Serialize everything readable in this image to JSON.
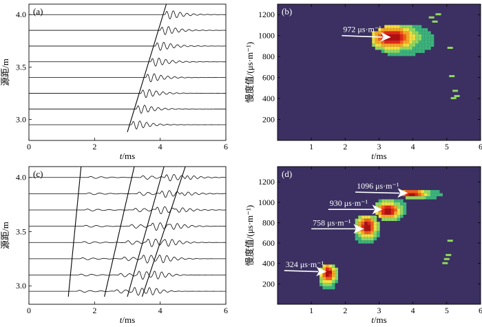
{
  "chart_data": [
    {
      "id": "a",
      "type": "line",
      "panel_label": "(a)",
      "xlabel": "t/ms",
      "ylabel": "源距/m",
      "xlim": [
        0,
        6
      ],
      "ylim": [
        2.8,
        4.1
      ],
      "x_ticks": [
        "0",
        "2",
        "4",
        "6"
      ],
      "y_ticks": [
        "3.0",
        "3.5",
        "4.0"
      ],
      "source_offsets": [
        2.95,
        3.1,
        3.25,
        3.4,
        3.55,
        3.7,
        3.85,
        4.0
      ],
      "moveout_line": {
        "t_start": 3.0,
        "offset_start": 2.88,
        "slowness_us_per_m": 972
      },
      "arrivals": [
        {
          "t0": 3.12,
          "slowness_us_per_m": 972,
          "freq_khz": 4.8,
          "amp": 1.0,
          "decay": 0.4
        }
      ]
    },
    {
      "id": "b",
      "type": "heatmap",
      "panel_label": "(b)",
      "xlabel": "t/ms",
      "ylabel": "慢度值/(μs·m⁻¹)",
      "xlim": [
        0,
        6
      ],
      "ylim": [
        0,
        1300
      ],
      "x_ticks": [
        "1",
        "2",
        "3",
        "4",
        "5",
        "6"
      ],
      "y_ticks": [
        "200",
        "400",
        "600",
        "800",
        "1000",
        "1200"
      ],
      "background": "#3b3061",
      "blobs": [
        {
          "t": 3.3,
          "s": 980,
          "t_min": 2.7,
          "t_max": 4.6,
          "s_min": 820,
          "s_max": 1130,
          "peak_t": 3.3,
          "peak_s": 1000
        }
      ],
      "specks": [
        [
          4.75,
          1200
        ],
        [
          4.65,
          1130
        ],
        [
          4.55,
          1170
        ],
        [
          5.15,
          610
        ],
        [
          5.25,
          470
        ],
        [
          5.2,
          400
        ],
        [
          5.3,
          420
        ],
        [
          5.1,
          880
        ]
      ],
      "annotations": [
        {
          "text": "972 μs·m⁻¹",
          "arrow_tail": [
            1.9,
            1000
          ],
          "arrow_head": [
            3.35,
            985
          ]
        }
      ]
    },
    {
      "id": "c",
      "type": "line",
      "panel_label": "(c)",
      "xlabel": "t/ms",
      "ylabel": "源距/m",
      "xlim": [
        0,
        6
      ],
      "ylim": [
        2.83,
        4.1
      ],
      "x_ticks": [
        "0",
        "2",
        "4",
        "6"
      ],
      "y_ticks": [
        "3.0",
        "3.5",
        "4.0"
      ],
      "source_offsets": [
        2.95,
        3.1,
        3.25,
        3.4,
        3.55,
        3.7,
        3.85,
        4.0
      ],
      "moveout_lines": [
        {
          "t_start": 1.2,
          "offset_start": 2.9,
          "slowness_us_per_m": 324
        },
        {
          "t_start": 2.3,
          "offset_start": 2.9,
          "slowness_us_per_m": 758
        },
        {
          "t_start": 3.0,
          "offset_start": 2.9,
          "slowness_us_per_m": 930
        },
        {
          "t_start": 3.45,
          "offset_start": 2.9,
          "slowness_us_per_m": 1096
        }
      ],
      "arrivals": [
        {
          "t0": 1.45,
          "slowness_us_per_m": 324,
          "freq_khz": 3.0,
          "amp": 0.22,
          "decay": 0.5
        },
        {
          "t0": 2.6,
          "slowness_us_per_m": 758,
          "freq_khz": 3.5,
          "amp": 0.45,
          "decay": 0.4
        },
        {
          "t0": 3.15,
          "slowness_us_per_m": 930,
          "freq_khz": 4.2,
          "amp": 0.9,
          "decay": 0.4
        },
        {
          "t0": 3.6,
          "slowness_us_per_m": 1096,
          "freq_khz": 4.5,
          "amp": 0.7,
          "decay": 0.35
        }
      ]
    },
    {
      "id": "d",
      "type": "heatmap",
      "panel_label": "(d)",
      "xlabel": "t/ms",
      "ylabel": "慢度值/(μs·m⁻¹)",
      "xlim": [
        0,
        6
      ],
      "ylim": [
        0,
        1350
      ],
      "x_ticks": [
        "1",
        "2",
        "3",
        "4",
        "5",
        "6"
      ],
      "y_ticks": [
        "200",
        "400",
        "600",
        "800",
        "1000",
        "1200"
      ],
      "background": "#3b3061",
      "blobs": [
        {
          "t": 1.45,
          "s": 320,
          "t_min": 1.15,
          "t_max": 1.75,
          "s_min": 150,
          "s_max": 420,
          "peak_t": 1.45,
          "peak_s": 320
        },
        {
          "t": 2.6,
          "s": 780,
          "t_min": 2.2,
          "t_max": 3.0,
          "s_min": 600,
          "s_max": 900,
          "peak_t": 2.6,
          "peak_s": 780
        },
        {
          "t": 3.2,
          "s": 930,
          "t_min": 2.8,
          "t_max": 3.8,
          "s_min": 830,
          "s_max": 1060,
          "peak_t": 3.2,
          "peak_s": 930
        },
        {
          "t": 4.0,
          "s": 1100,
          "t_min": 3.6,
          "t_max": 4.8,
          "s_min": 1040,
          "s_max": 1150,
          "peak_t": 3.9,
          "peak_s": 1100
        }
      ],
      "specks": [
        [
          5.05,
          480
        ],
        [
          5.0,
          440
        ],
        [
          4.95,
          400
        ],
        [
          5.1,
          620
        ],
        [
          4.3,
          1040
        ]
      ],
      "annotations": [
        {
          "text": "324 μs·m⁻¹",
          "arrow_tail": [
            0.2,
            330
          ],
          "arrow_head": [
            1.45,
            320
          ]
        },
        {
          "text": "758 μs·m⁻¹",
          "arrow_tail": [
            1.0,
            740
          ],
          "arrow_head": [
            2.55,
            740
          ]
        },
        {
          "text": "930 μs·m⁻¹",
          "arrow_tail": [
            1.5,
            930
          ],
          "arrow_head": [
            3.1,
            930
          ]
        },
        {
          "text": "1096 μs·m⁻¹",
          "arrow_tail": [
            2.3,
            1100
          ],
          "arrow_head": [
            3.85,
            1090
          ]
        }
      ]
    }
  ]
}
